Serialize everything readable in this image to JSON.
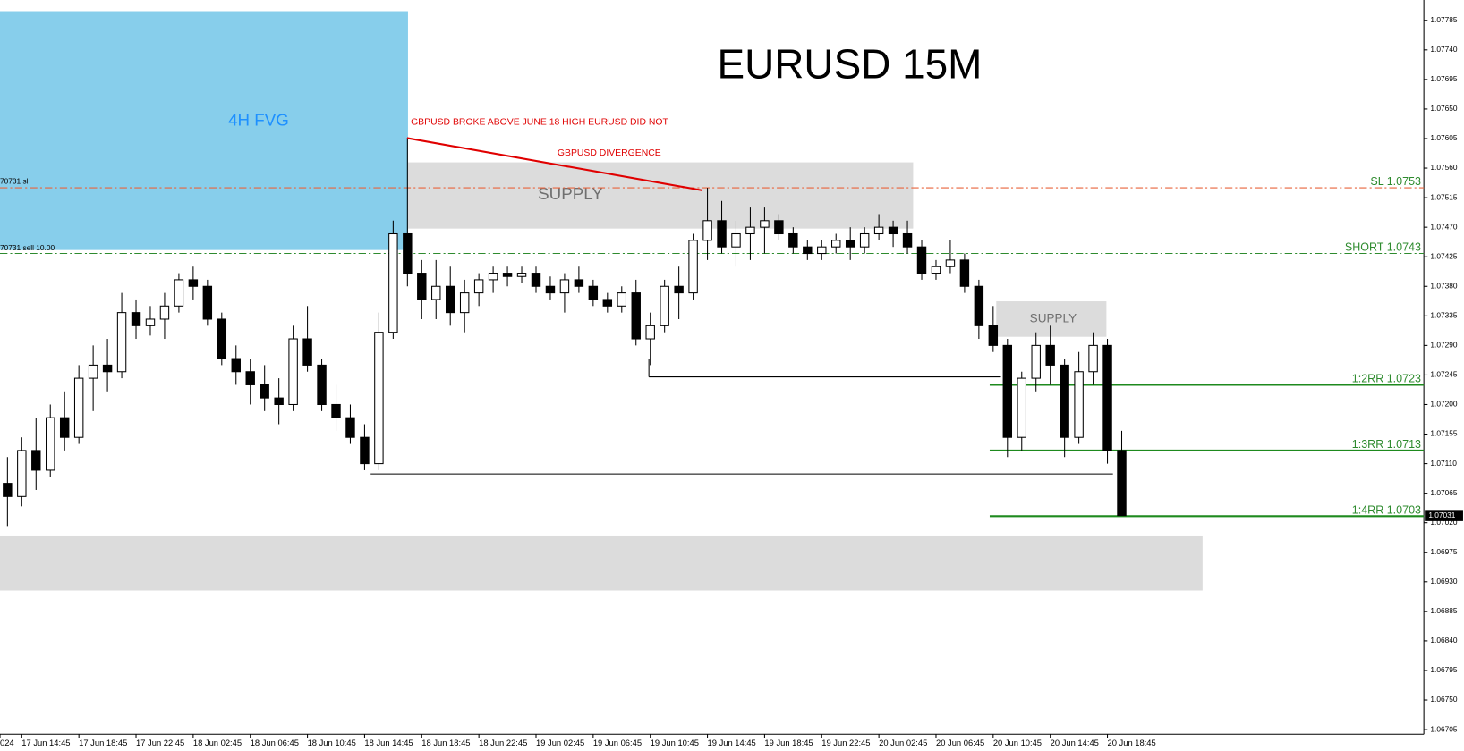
{
  "chart_data": {
    "type": "candlestick",
    "title": "EURUSD 15M",
    "candles": [
      [
        1.0708,
        1.0712,
        1.07015,
        1.0706
      ],
      [
        1.0706,
        1.0715,
        1.07045,
        1.0713
      ],
      [
        1.0713,
        1.0718,
        1.0707,
        1.071
      ],
      [
        1.071,
        1.072,
        1.0709,
        1.0718
      ],
      [
        1.0718,
        1.0722,
        1.0713,
        1.0715
      ],
      [
        1.0715,
        1.0726,
        1.0714,
        1.0724
      ],
      [
        1.0724,
        1.0729,
        1.0719,
        1.0726
      ],
      [
        1.0726,
        1.073,
        1.0722,
        1.0725
      ],
      [
        1.0725,
        1.0737,
        1.0724,
        1.0734
      ],
      [
        1.0734,
        1.0736,
        1.073,
        1.0732
      ],
      [
        1.0732,
        1.0735,
        1.07305,
        1.0733
      ],
      [
        1.0733,
        1.0737,
        1.073,
        1.0735
      ],
      [
        1.0735,
        1.074,
        1.0734,
        1.0739
      ],
      [
        1.0739,
        1.0741,
        1.0736,
        1.0738
      ],
      [
        1.0738,
        1.0739,
        1.0732,
        1.0733
      ],
      [
        1.0733,
        1.0734,
        1.0726,
        1.0727
      ],
      [
        1.0727,
        1.0729,
        1.0723,
        1.0725
      ],
      [
        1.0725,
        1.0727,
        1.072,
        1.0723
      ],
      [
        1.0723,
        1.0726,
        1.0719,
        1.0721
      ],
      [
        1.0721,
        1.0724,
        1.0717,
        1.072
      ],
      [
        1.072,
        1.0732,
        1.0719,
        1.073
      ],
      [
        1.073,
        1.0735,
        1.0725,
        1.0726
      ],
      [
        1.0726,
        1.0727,
        1.0719,
        1.072
      ],
      [
        1.072,
        1.0723,
        1.0716,
        1.0718
      ],
      [
        1.0718,
        1.072,
        1.0714,
        1.0715
      ],
      [
        1.0715,
        1.0717,
        1.071,
        1.0711
      ],
      [
        1.0711,
        1.0734,
        1.071,
        1.0731
      ],
      [
        1.0731,
        1.0748,
        1.073,
        1.0746
      ],
      [
        1.0746,
        1.07606,
        1.0738,
        1.074
      ],
      [
        1.074,
        1.0742,
        1.0733,
        1.0736
      ],
      [
        1.0736,
        1.0742,
        1.0733,
        1.0738
      ],
      [
        1.0738,
        1.0741,
        1.0732,
        1.0734
      ],
      [
        1.0734,
        1.0739,
        1.0731,
        1.0737
      ],
      [
        1.0737,
        1.074,
        1.0735,
        1.0739
      ],
      [
        1.0739,
        1.0741,
        1.0737,
        1.074
      ],
      [
        1.074,
        1.0741,
        1.0738,
        1.07395
      ],
      [
        1.07395,
        1.0741,
        1.07385,
        1.074
      ],
      [
        1.074,
        1.0741,
        1.0737,
        1.0738
      ],
      [
        1.0738,
        1.07395,
        1.0736,
        1.0737
      ],
      [
        1.0737,
        1.074,
        1.0734,
        1.0739
      ],
      [
        1.0739,
        1.0741,
        1.0737,
        1.0738
      ],
      [
        1.0738,
        1.0739,
        1.0735,
        1.0736
      ],
      [
        1.0736,
        1.0737,
        1.0734,
        1.0735
      ],
      [
        1.0735,
        1.0738,
        1.0734,
        1.0737
      ],
      [
        1.0737,
        1.0739,
        1.0729,
        1.073
      ],
      [
        1.073,
        1.0734,
        1.0726,
        1.0732
      ],
      [
        1.0732,
        1.0739,
        1.0731,
        1.0738
      ],
      [
        1.0738,
        1.0741,
        1.0733,
        1.0737
      ],
      [
        1.0737,
        1.0746,
        1.0736,
        1.0745
      ],
      [
        1.0745,
        1.0753,
        1.0742,
        1.0748
      ],
      [
        1.0748,
        1.0751,
        1.0743,
        1.0744
      ],
      [
        1.0744,
        1.0748,
        1.0741,
        1.0746
      ],
      [
        1.0746,
        1.075,
        1.0742,
        1.0747
      ],
      [
        1.0747,
        1.075,
        1.0743,
        1.0748
      ],
      [
        1.0748,
        1.0749,
        1.0745,
        1.0746
      ],
      [
        1.0746,
        1.0747,
        1.0743,
        1.0744
      ],
      [
        1.0744,
        1.0745,
        1.0742,
        1.0743
      ],
      [
        1.0743,
        1.0745,
        1.0742,
        1.0744
      ],
      [
        1.0744,
        1.0746,
        1.0743,
        1.0745
      ],
      [
        1.0745,
        1.0747,
        1.0742,
        1.0744
      ],
      [
        1.0744,
        1.0747,
        1.0743,
        1.0746
      ],
      [
        1.0746,
        1.0749,
        1.0745,
        1.0747
      ],
      [
        1.0747,
        1.0748,
        1.0744,
        1.0746
      ],
      [
        1.0746,
        1.0748,
        1.0743,
        1.0744
      ],
      [
        1.0744,
        1.0745,
        1.0739,
        1.074
      ],
      [
        1.074,
        1.0742,
        1.0739,
        1.0741
      ],
      [
        1.0741,
        1.0745,
        1.074,
        1.0742
      ],
      [
        1.0742,
        1.0743,
        1.0737,
        1.0738
      ],
      [
        1.0738,
        1.0739,
        1.073,
        1.0732
      ],
      [
        1.0732,
        1.0735,
        1.0728,
        1.0729
      ],
      [
        1.0729,
        1.073,
        1.0712,
        1.0715
      ],
      [
        1.0715,
        1.0725,
        1.0713,
        1.0724
      ],
      [
        1.0724,
        1.0731,
        1.0722,
        1.0729
      ],
      [
        1.0729,
        1.0732,
        1.0723,
        1.0726
      ],
      [
        1.0726,
        1.0727,
        1.0712,
        1.0715
      ],
      [
        1.0715,
        1.0728,
        1.0714,
        1.0725
      ],
      [
        1.0725,
        1.0731,
        1.0723,
        1.0729
      ],
      [
        1.0729,
        1.073,
        1.0711,
        1.0713
      ],
      [
        1.0713,
        1.0716,
        1.07031,
        1.07031
      ]
    ],
    "x_labels": [
      "024",
      "17 Jun 14:45",
      "17 Jun 18:45",
      "17 Jun 22:45",
      "18 Jun 02:45",
      "18 Jun 06:45",
      "18 Jun 10:45",
      "18 Jun 14:45",
      "18 Jun 18:45",
      "18 Jun 22:45",
      "19 Jun 02:45",
      "19 Jun 06:45",
      "19 Jun 10:45",
      "19 Jun 14:45",
      "19 Jun 18:45",
      "19 Jun 22:45",
      "20 Jun 02:45",
      "20 Jun 06:45",
      "20 Jun 10:45",
      "20 Jun 14:45",
      "20 Jun 18:45"
    ],
    "ylim": [
      1.06698,
      1.07816
    ],
    "yticks": [
      1.07785,
      {
        "value": 1.0774,
        "label": "1.07740"
      },
      1.07695,
      {
        "value": 1.0765,
        "label": "1.07650"
      },
      1.07605,
      {
        "value": 1.0756,
        "label": "1.07560"
      },
      1.07515,
      {
        "value": 1.0747,
        "label": "1.07470"
      },
      1.07425,
      {
        "value": 1.0738,
        "label": "1.07380"
      },
      1.07335,
      {
        "value": 1.0729,
        "label": "1.07290"
      },
      1.07245,
      {
        "value": 1.072,
        "label": "1.07200"
      },
      1.07155,
      {
        "value": 1.0711,
        "label": "1.07110"
      },
      1.07065,
      {
        "value": 1.0702,
        "label": "1.07020"
      },
      1.06975,
      {
        "value": 1.0693,
        "label": "1.06930"
      },
      1.06885,
      {
        "value": 1.0684,
        "label": "1.06840"
      },
      1.06795,
      {
        "value": 1.0675,
        "label": "1.06750"
      },
      1.06705
    ],
    "levels": [
      {
        "label": "SL 1.0753",
        "value": 1.0753,
        "color": "#e8643c",
        "style": "dash-dot"
      },
      {
        "label": "SHORT 1.0743",
        "value": 1.0743,
        "color": "#2e8b2e",
        "style": "dash-dot"
      },
      {
        "label": "1:2RR 1.0723",
        "value": 1.0723,
        "color": "#1e8a1e",
        "style": "solid"
      },
      {
        "label": "1:3RR 1.0713",
        "value": 1.0713,
        "color": "#1e8a1e",
        "style": "solid"
      },
      {
        "label": "1:4RR 1.0703",
        "value": 1.0703,
        "color": "#1e8a1e",
        "style": "solid"
      }
    ],
    "level_label_color": "#2e8b2e",
    "annotations": {
      "fvg": "4H FVG",
      "supply_1": "SUPPLY",
      "supply_2": "SUPPLY",
      "note": "GBPUSD BROKE ABOVE JUNE 18 HIGH EURUSD DID NOT",
      "divergence": "GBPUSD DIVERGENCE",
      "sl_order": "70731 sl",
      "sell_order": "70731 sell 10.00"
    }
  }
}
